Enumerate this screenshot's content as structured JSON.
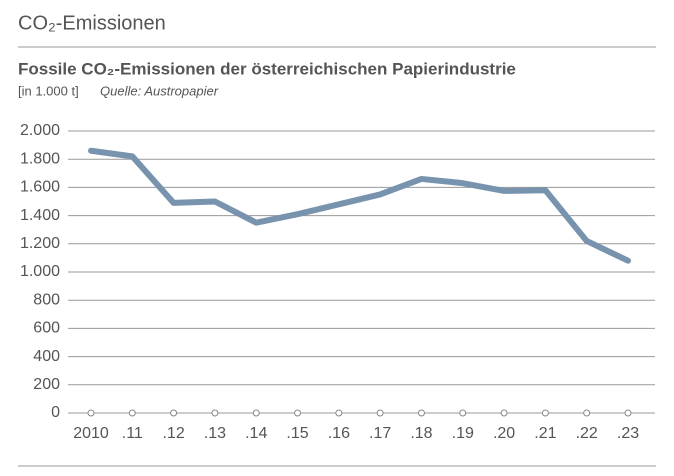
{
  "chart_data": {
    "type": "line",
    "header": "CO₂-Emissionen",
    "title": "Fossile CO₂-Emissionen der österreichischen Papierindustrie",
    "subtitle": "[in 1.000 t]",
    "source": "Quelle: Austropapier",
    "categories": [
      "2010",
      ".11",
      ".12",
      ".13",
      ".14",
      ".15",
      ".16",
      ".17",
      ".18",
      ".19",
      ".20",
      ".21",
      ".22",
      ".23"
    ],
    "series": [
      {
        "color": "#7893ad",
        "values": [
          1860,
          1820,
          1490,
          1500,
          1350,
          1410,
          1480,
          1550,
          1660,
          1630,
          1575,
          1580,
          1220,
          1080
        ]
      }
    ],
    "ylim": [
      0,
      2000
    ],
    "yticks": [
      0,
      200,
      400,
      600,
      800,
      {
        "value": 1000,
        "label": "1.000"
      },
      {
        "value": 1200,
        "label": "1.200"
      },
      {
        "value": 1400,
        "label": "1.400"
      },
      {
        "value": 1600,
        "label": "1.600"
      },
      {
        "value": 1800,
        "label": "1.800"
      },
      {
        "value": 2000,
        "label": "2.000"
      }
    ],
    "grid": true
  }
}
